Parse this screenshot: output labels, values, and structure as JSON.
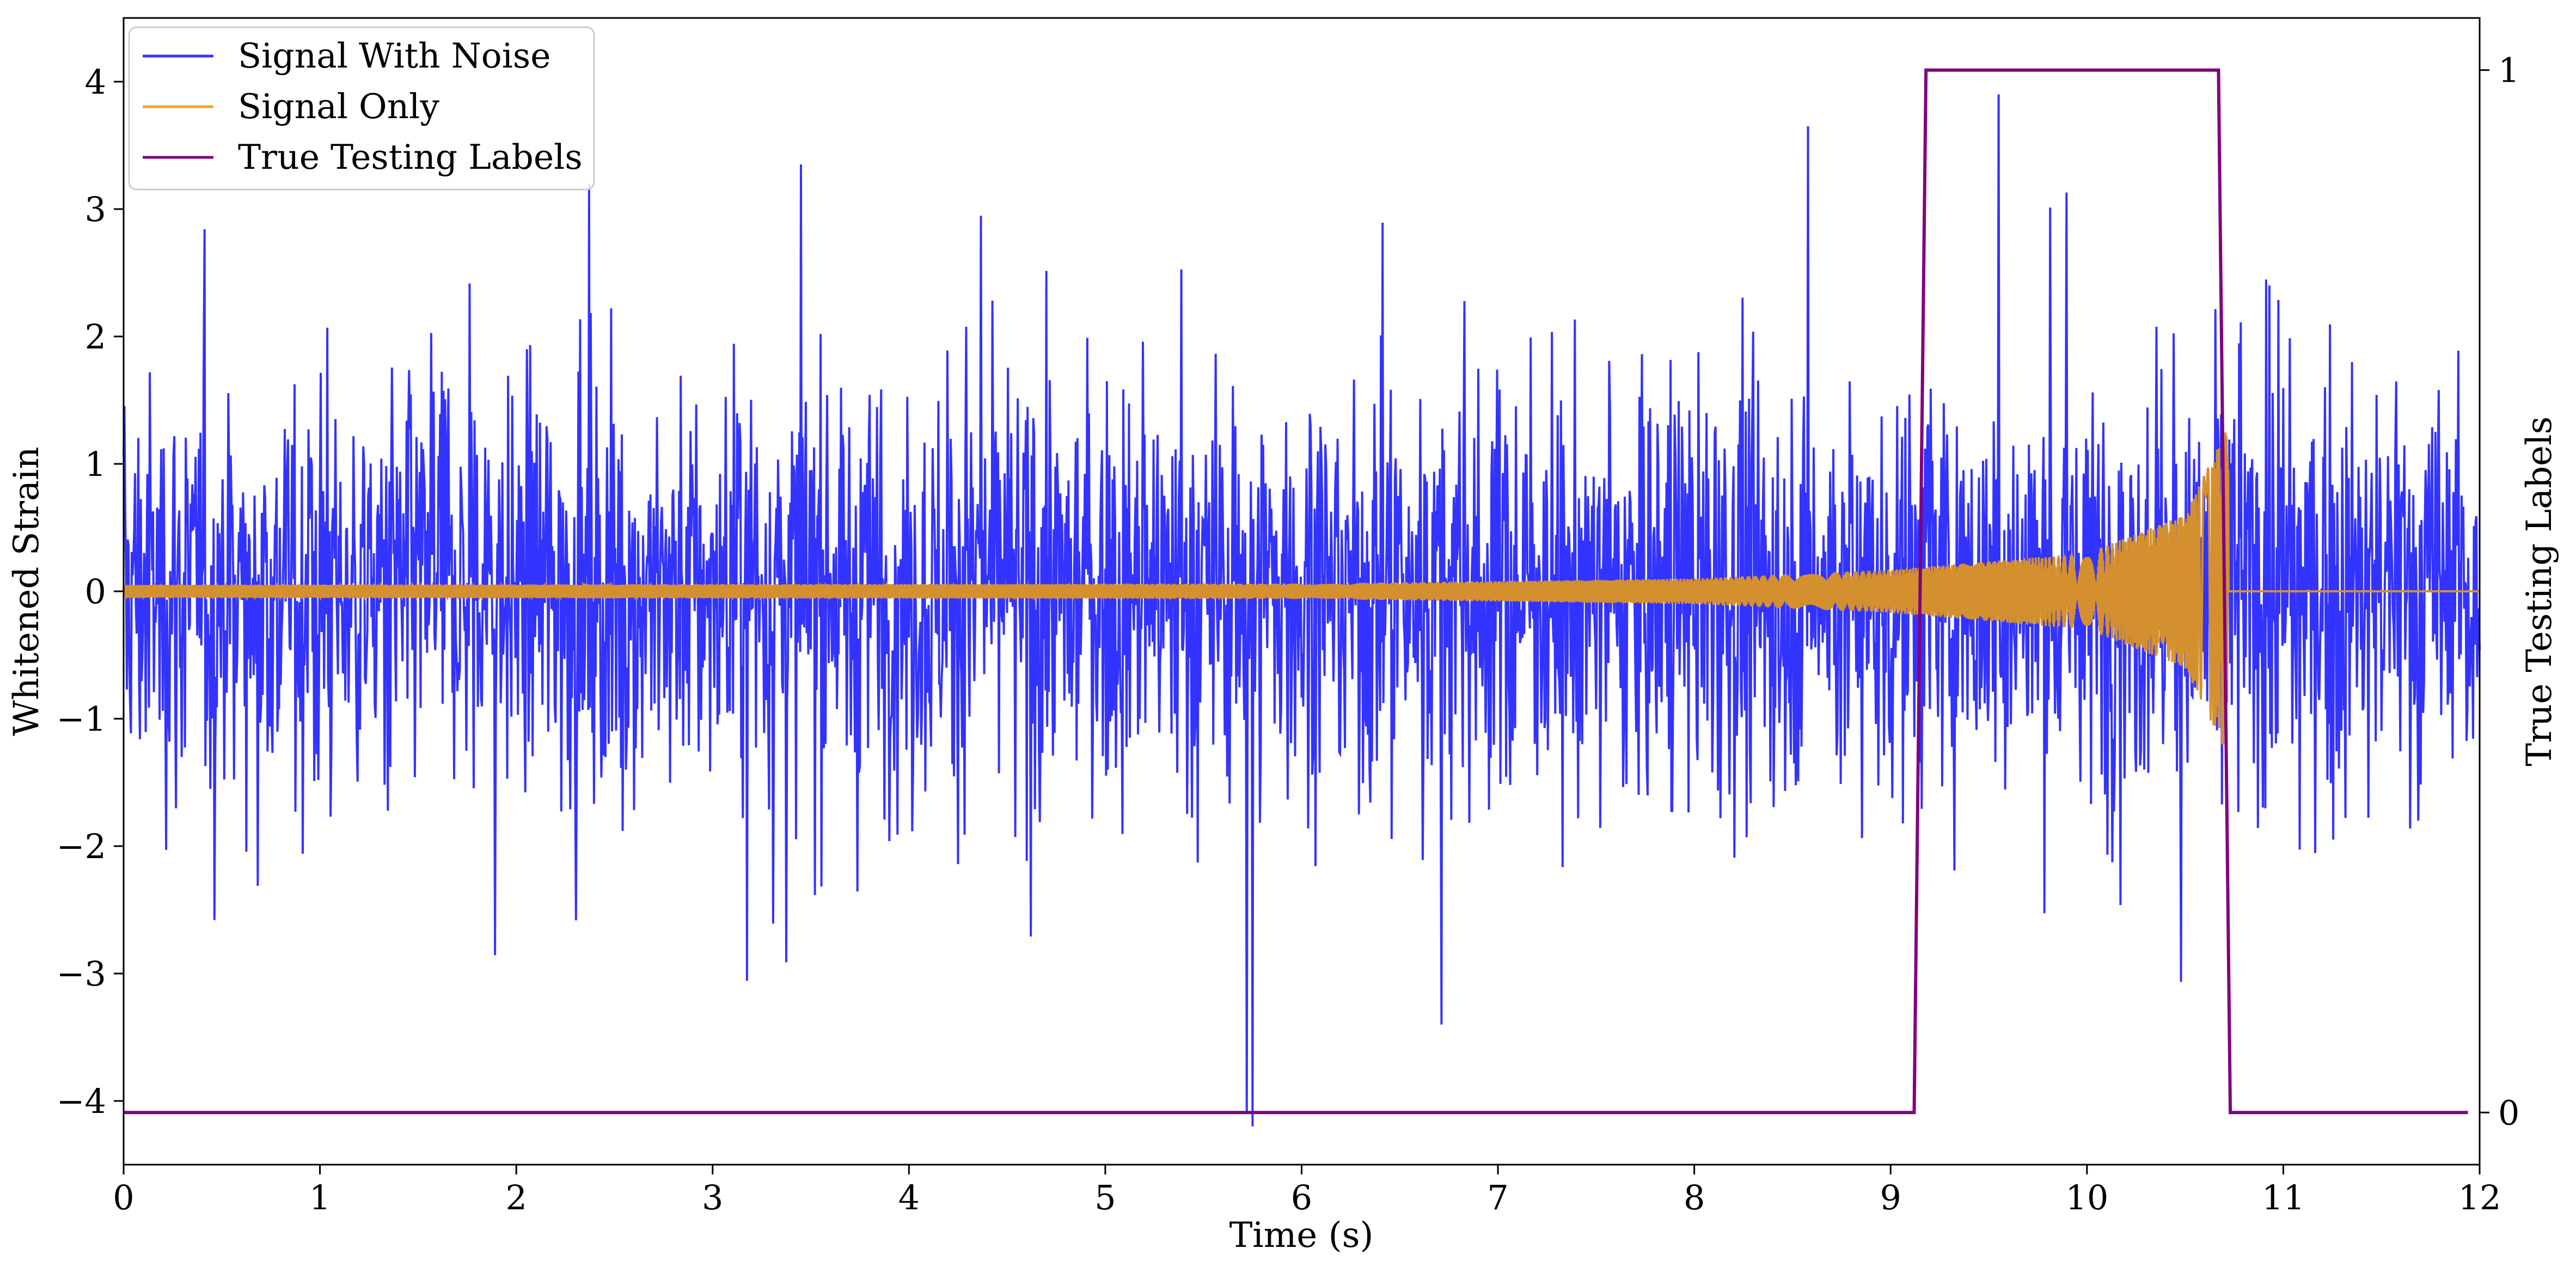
{
  "chart_data": {
    "type": "line",
    "title": "",
    "xlabel": "Time (s)",
    "ylabel": "Whitened Strain",
    "y2label": "True Testing Labels",
    "xlim": [
      0,
      12
    ],
    "ylim": [
      -4.5,
      4.5
    ],
    "y2lim": [
      -0.05,
      1.05
    ],
    "xticks": [
      0,
      1,
      2,
      3,
      4,
      5,
      6,
      7,
      8,
      9,
      10,
      11,
      12
    ],
    "yticks": [
      -4,
      -3,
      -2,
      -1,
      0,
      1,
      2,
      3,
      4
    ],
    "y2ticks": [
      0,
      1
    ],
    "tick_labels": {
      "x": [
        "0",
        "1",
        "2",
        "3",
        "4",
        "5",
        "6",
        "7",
        "8",
        "9",
        "10",
        "11",
        "12"
      ],
      "y": [
        "−4",
        "−3",
        "−2",
        "−1",
        "0",
        "1",
        "2",
        "3",
        "4"
      ],
      "y2": [
        "0",
        "1"
      ]
    },
    "grid": false,
    "legend_position": "top-left",
    "legend": [
      "Signal With Noise",
      "Signal Only",
      "True Testing Labels"
    ],
    "series": [
      {
        "name": "Signal With Noise",
        "axis": "left",
        "color": "#3333ff",
        "description": "noise with std about 0.8, spikes up to about 4.1 and down to about -4.2",
        "x_range": [
          0,
          12
        ],
        "peaks": [
          {
            "x": 3.45,
            "y": 3.35
          },
          {
            "x": 5.72,
            "y": -4.1
          },
          {
            "x": 5.75,
            "y": -4.2
          },
          {
            "x": 8.58,
            "y": 3.65
          },
          {
            "x": 9.55,
            "y": 3.9
          }
        ]
      },
      {
        "name": "Signal Only",
        "axis": "left",
        "color": "#d4902e",
        "legend_color": "#f5a623",
        "description": "chirp oscillation around 0, amplitude growing from about 0.05 to about 1.3, ending at t = 10.72 s, flat 0 after",
        "x_range": [
          0,
          12
        ],
        "amplitude_points": [
          {
            "x": 0,
            "y": 0.05
          },
          {
            "x": 6,
            "y": 0.06
          },
          {
            "x": 8,
            "y": 0.1
          },
          {
            "x": 9,
            "y": 0.17
          },
          {
            "x": 10,
            "y": 0.3
          },
          {
            "x": 10.5,
            "y": 0.6
          },
          {
            "x": 10.72,
            "y": 1.3
          }
        ],
        "end_x": 10.72
      },
      {
        "name": "True Testing Labels",
        "axis": "right",
        "color": "#800080",
        "x": [
          0,
          9.12,
          9.18,
          10.67,
          10.73,
          11.94
        ],
        "values": [
          0,
          0,
          1,
          1,
          0,
          0
        ]
      }
    ]
  }
}
